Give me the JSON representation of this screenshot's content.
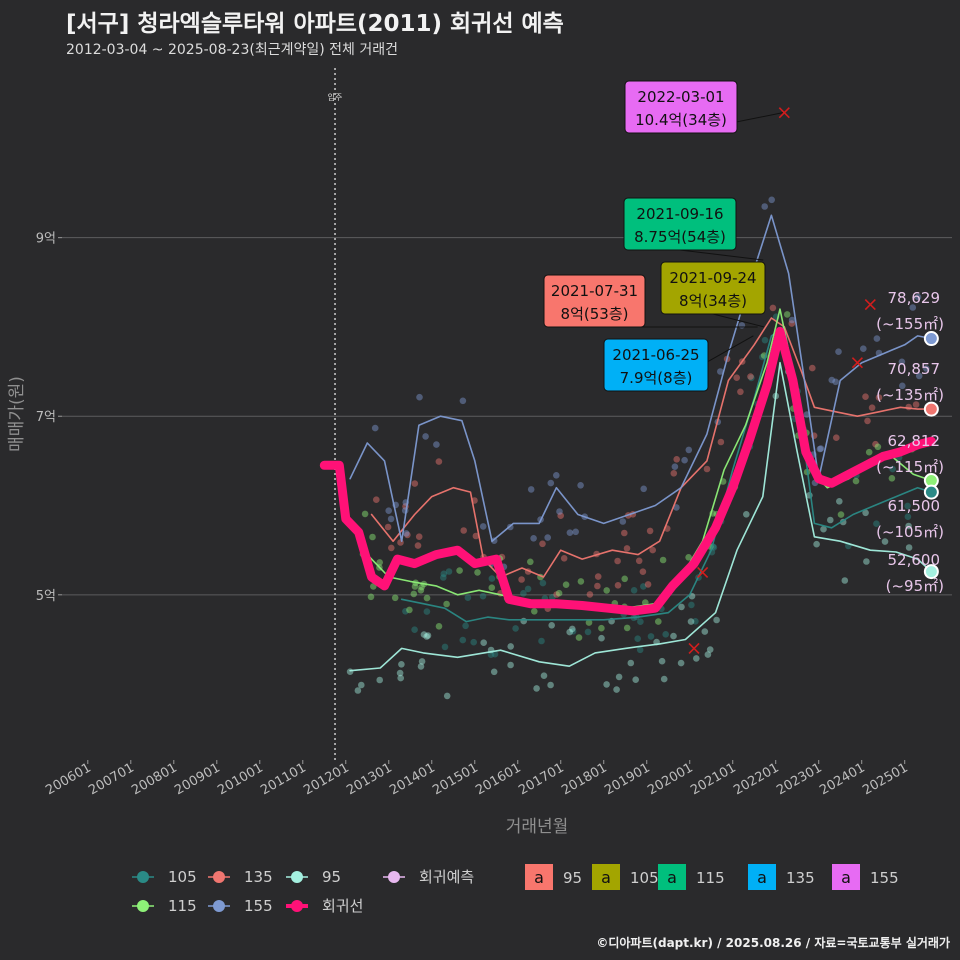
{
  "title": "[서구] 청라엑슬루타워 아파트(2011) 회귀선 예측",
  "subtitle": "2012-03-04 ~ 2025-08-23(최근계약일) 전체 거래건",
  "caption": "©디아파트(dapt.kr) / 2025.08.26 / 자료=국토교통부 실거래가",
  "colors": {
    "background": "#2a2a2c",
    "s105": "#2a8a86",
    "s135": "#f07670",
    "s95": "#a4f0e0",
    "s115": "#8ef078",
    "s155": "#7e9ad2",
    "regression": "#ff1177",
    "forecast": "#e8b8f0",
    "box95": "#f8766d",
    "box105": "#a3a500",
    "box115": "#00bf7d",
    "box135": "#00b0f6",
    "box155": "#e76bf3"
  },
  "chart_data": {
    "type": "line",
    "xlabel": "거래년월",
    "ylabel": "매매가(원)",
    "x_ticks": [
      "200601",
      "200701",
      "200801",
      "200901",
      "201001",
      "201101",
      "201201",
      "201301",
      "201401",
      "201501",
      "201601",
      "201701",
      "201801",
      "201901",
      "202001",
      "202101",
      "202201",
      "202301",
      "202401",
      "202501"
    ],
    "y_ticks": [
      {
        "value": 5,
        "label": "5억"
      },
      {
        "value": 7,
        "label": "7억"
      },
      {
        "value": 9,
        "label": "9억"
      }
    ],
    "ylim": [
      3.15,
      10.9
    ],
    "xlim": [
      2005.4,
      2026.1
    ],
    "vline": {
      "x": 2011.75,
      "label": "입주"
    },
    "series": [
      {
        "name": "105",
        "color_key": "s105",
        "points": [
          [
            2013.3,
            4.95
          ],
          [
            2013.8,
            4.9
          ],
          [
            2014.3,
            4.85
          ],
          [
            2014.8,
            4.7
          ],
          [
            2015.3,
            4.75
          ],
          [
            2015.8,
            4.72
          ],
          [
            2016.5,
            4.72
          ],
          [
            2017.2,
            4.72
          ],
          [
            2018.0,
            4.72
          ],
          [
            2018.8,
            4.75
          ],
          [
            2019.5,
            4.8
          ],
          [
            2020.0,
            5.0
          ],
          [
            2020.5,
            5.5
          ],
          [
            2021.0,
            6.4
          ],
          [
            2021.5,
            7.2
          ],
          [
            2021.9,
            7.9
          ],
          [
            2022.2,
            8.0
          ],
          [
            2022.6,
            6.9
          ],
          [
            2022.9,
            5.8
          ],
          [
            2023.3,
            5.75
          ],
          [
            2023.8,
            5.9
          ],
          [
            2024.3,
            6.0
          ],
          [
            2024.8,
            6.1
          ],
          [
            2025.3,
            6.2
          ],
          [
            2025.62,
            6.15
          ]
        ]
      },
      {
        "name": "135",
        "color_key": "s135",
        "points": [
          [
            2012.6,
            5.9
          ],
          [
            2013.1,
            5.6
          ],
          [
            2013.6,
            5.9
          ],
          [
            2014.0,
            6.1
          ],
          [
            2014.5,
            6.2
          ],
          [
            2014.9,
            6.15
          ],
          [
            2015.2,
            5.4
          ],
          [
            2015.6,
            5.2
          ],
          [
            2016.1,
            5.3
          ],
          [
            2016.6,
            5.2
          ],
          [
            2017.0,
            5.5
          ],
          [
            2017.5,
            5.4
          ],
          [
            2018.2,
            5.5
          ],
          [
            2018.8,
            5.45
          ],
          [
            2019.3,
            5.6
          ],
          [
            2019.8,
            6.2
          ],
          [
            2020.4,
            6.5
          ],
          [
            2020.9,
            7.4
          ],
          [
            2021.5,
            7.8
          ],
          [
            2021.9,
            8.1
          ],
          [
            2022.2,
            8.0
          ],
          [
            2022.6,
            7.5
          ],
          [
            2022.9,
            7.1
          ],
          [
            2023.4,
            7.05
          ],
          [
            2023.9,
            7.0
          ],
          [
            2024.4,
            7.05
          ],
          [
            2024.9,
            7.1
          ],
          [
            2025.3,
            7.08
          ],
          [
            2025.62,
            7.08
          ]
        ]
      },
      {
        "name": "95",
        "color_key": "s95",
        "points": [
          [
            2012.1,
            4.15
          ],
          [
            2012.8,
            4.18
          ],
          [
            2013.3,
            4.4
          ],
          [
            2013.8,
            4.35
          ],
          [
            2014.6,
            4.3
          ],
          [
            2015.6,
            4.38
          ],
          [
            2016.5,
            4.25
          ],
          [
            2017.2,
            4.2
          ],
          [
            2017.8,
            4.35
          ],
          [
            2018.5,
            4.4
          ],
          [
            2019.3,
            4.45
          ],
          [
            2019.9,
            4.5
          ],
          [
            2020.6,
            4.8
          ],
          [
            2021.1,
            5.5
          ],
          [
            2021.7,
            6.1
          ],
          [
            2022.1,
            7.6
          ],
          [
            2022.5,
            6.6
          ],
          [
            2022.9,
            5.65
          ],
          [
            2023.5,
            5.6
          ],
          [
            2024.2,
            5.5
          ],
          [
            2024.8,
            5.48
          ],
          [
            2025.3,
            5.4
          ],
          [
            2025.62,
            5.26
          ]
        ]
      },
      {
        "name": "115",
        "color_key": "s115",
        "points": [
          [
            2012.4,
            5.5
          ],
          [
            2013.0,
            5.2
          ],
          [
            2013.5,
            5.15
          ],
          [
            2014.1,
            5.1
          ],
          [
            2014.6,
            5.0
          ],
          [
            2015.1,
            5.05
          ],
          [
            2015.6,
            5.0
          ],
          [
            2016.3,
            4.92
          ],
          [
            2017.0,
            4.9
          ],
          [
            2017.8,
            4.88
          ],
          [
            2018.5,
            4.85
          ],
          [
            2019.2,
            4.9
          ],
          [
            2019.8,
            5.2
          ],
          [
            2020.3,
            5.6
          ],
          [
            2020.8,
            6.4
          ],
          [
            2021.3,
            6.9
          ],
          [
            2021.8,
            7.6
          ],
          [
            2022.1,
            8.2
          ],
          [
            2022.4,
            7.5
          ],
          [
            2022.8,
            6.4
          ],
          [
            2023.2,
            6.2
          ],
          [
            2023.7,
            6.3
          ],
          [
            2024.2,
            6.45
          ],
          [
            2024.7,
            6.55
          ],
          [
            2025.2,
            6.35
          ],
          [
            2025.62,
            6.28
          ]
        ]
      },
      {
        "name": "155",
        "color_key": "s155",
        "points": [
          [
            2012.1,
            6.3
          ],
          [
            2012.5,
            6.7
          ],
          [
            2012.9,
            6.5
          ],
          [
            2013.3,
            5.6
          ],
          [
            2013.7,
            6.9
          ],
          [
            2014.2,
            7.0
          ],
          [
            2014.7,
            6.95
          ],
          [
            2015.0,
            6.5
          ],
          [
            2015.4,
            5.6
          ],
          [
            2015.9,
            5.8
          ],
          [
            2016.5,
            5.8
          ],
          [
            2016.9,
            6.2
          ],
          [
            2017.4,
            5.9
          ],
          [
            2018.0,
            5.8
          ],
          [
            2018.6,
            5.9
          ],
          [
            2019.2,
            6.0
          ],
          [
            2019.8,
            6.2
          ],
          [
            2020.4,
            6.8
          ],
          [
            2020.9,
            7.7
          ],
          [
            2021.4,
            8.5
          ],
          [
            2021.9,
            9.25
          ],
          [
            2022.3,
            8.6
          ],
          [
            2022.7,
            7.3
          ],
          [
            2023.0,
            6.3
          ],
          [
            2023.5,
            7.4
          ],
          [
            2024.0,
            7.6
          ],
          [
            2024.5,
            7.7
          ],
          [
            2025.0,
            7.8
          ],
          [
            2025.3,
            7.9
          ],
          [
            2025.62,
            7.87
          ]
        ]
      },
      {
        "name": "회귀선",
        "color_key": "regression",
        "points": [
          [
            2011.5,
            6.45
          ],
          [
            2011.85,
            6.45
          ],
          [
            2012.0,
            5.85
          ],
          [
            2012.3,
            5.7
          ],
          [
            2012.6,
            5.2
          ],
          [
            2012.9,
            5.1
          ],
          [
            2013.2,
            5.4
          ],
          [
            2013.6,
            5.35
          ],
          [
            2014.1,
            5.45
          ],
          [
            2014.6,
            5.5
          ],
          [
            2015.0,
            5.35
          ],
          [
            2015.5,
            5.4
          ],
          [
            2015.8,
            4.95
          ],
          [
            2016.3,
            4.9
          ],
          [
            2016.9,
            4.9
          ],
          [
            2017.5,
            4.88
          ],
          [
            2018.1,
            4.85
          ],
          [
            2018.7,
            4.82
          ],
          [
            2019.2,
            4.85
          ],
          [
            2019.6,
            5.1
          ],
          [
            2020.1,
            5.35
          ],
          [
            2020.6,
            5.75
          ],
          [
            2021.0,
            6.2
          ],
          [
            2021.4,
            6.75
          ],
          [
            2021.8,
            7.35
          ],
          [
            2022.1,
            7.95
          ],
          [
            2022.4,
            7.4
          ],
          [
            2022.7,
            6.6
          ],
          [
            2023.0,
            6.3
          ],
          [
            2023.3,
            6.25
          ],
          [
            2023.7,
            6.35
          ],
          [
            2024.1,
            6.45
          ],
          [
            2024.5,
            6.55
          ],
          [
            2024.9,
            6.6
          ],
          [
            2025.3,
            6.68
          ],
          [
            2025.62,
            6.72
          ]
        ]
      }
    ],
    "forecasts": [
      {
        "value_label": "78,629",
        "area_label": "(~155㎡)",
        "x": 2025.62,
        "y": 7.87,
        "color_key": "s155"
      },
      {
        "value_label": "70,857",
        "area_label": "(~135㎡)",
        "x": 2025.62,
        "y": 7.08,
        "color_key": "s135"
      },
      {
        "value_label": "62,812",
        "area_label": "(~115㎡)",
        "x": 2025.62,
        "y": 6.28,
        "color_key": "s115"
      },
      {
        "value_label": "61,500",
        "area_label": "(~105㎡)",
        "x": 2025.62,
        "y": 6.15,
        "color_key": "s105"
      },
      {
        "value_label": "52,600",
        "area_label": "(~95㎡)",
        "x": 2025.62,
        "y": 5.26,
        "color_key": "s95"
      }
    ],
    "callouts": [
      {
        "date": "2022-03-01",
        "price": "10.4억(34층)",
        "color_key": "box155",
        "x": 2022.17,
        "y": 10.4
      },
      {
        "date": "2021-09-16",
        "price": "8.75억(54층)",
        "color_key": "box115",
        "x": 2021.71,
        "y": 8.75
      },
      {
        "date": "2021-07-31",
        "price": "8억(53층)",
        "color_key": "box95",
        "x": 2021.58,
        "y": 8.0
      },
      {
        "date": "2021-09-24",
        "price": "8억(34층)",
        "color_key": "box105",
        "x": 2021.73,
        "y": 8.0
      },
      {
        "date": "2021-06-25",
        "price": "7.9억(8층)",
        "color_key": "box135",
        "x": 2021.48,
        "y": 7.9
      }
    ],
    "legend": {
      "position": "bottom",
      "line_items": [
        "105",
        "135",
        "95",
        "회귀예측",
        "115",
        "155",
        "회귀선"
      ],
      "box_items": [
        "95",
        "105",
        "115",
        "135",
        "155"
      ],
      "box_glyph": "a"
    }
  }
}
